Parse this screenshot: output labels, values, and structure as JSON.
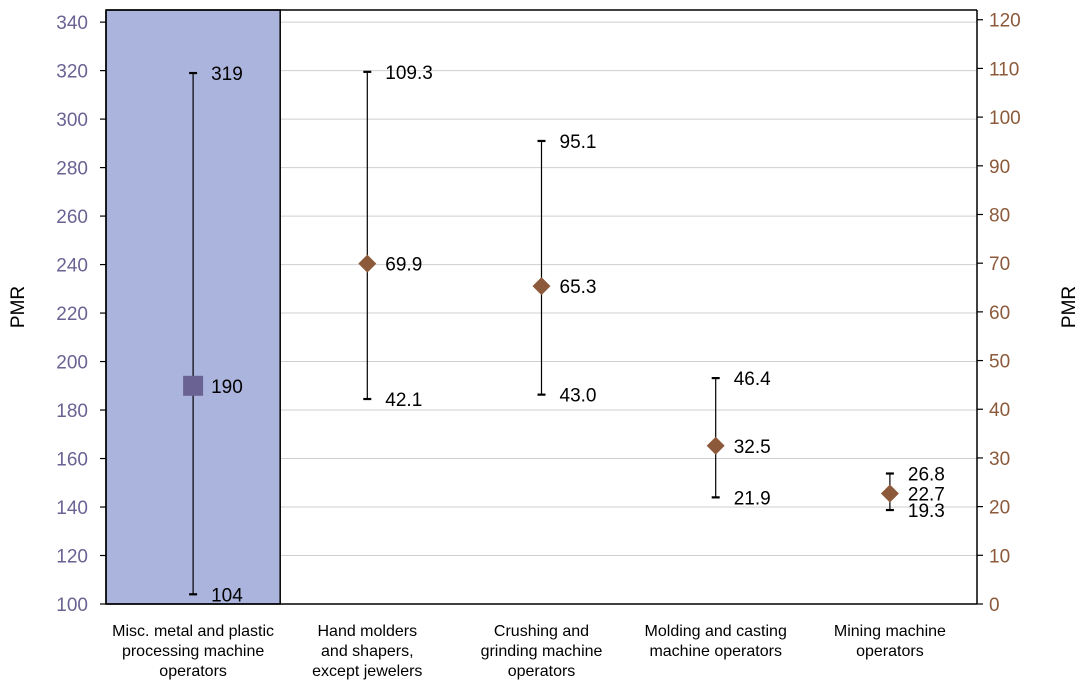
{
  "chart_data": {
    "type": "errorbar",
    "y_left": {
      "label": "PMR",
      "ticks": [
        100,
        120,
        140,
        160,
        180,
        200,
        220,
        240,
        260,
        280,
        300,
        320,
        340
      ],
      "ylim": [
        100,
        345
      ],
      "tick_color": "#6b6294"
    },
    "y_right": {
      "label": "PMR",
      "ticks": [
        0,
        10,
        20,
        30,
        40,
        50,
        60,
        70,
        80,
        90,
        100,
        110,
        120
      ],
      "ylim": [
        0,
        122
      ],
      "tick_color": "#8c5a3a"
    },
    "grid": true,
    "highlight_color": "#aab4dc",
    "categories": [
      {
        "lines": [
          "Misc. metal and plastic",
          "processing machine",
          "operators"
        ],
        "axis": "left",
        "marker": "square",
        "color": "#6b6294",
        "point": 190,
        "low": 104,
        "high": 319,
        "labels": {
          "point": "190",
          "low": "104",
          "high": "319"
        },
        "highlight": true
      },
      {
        "lines": [
          "Hand molders",
          "and shapers,",
          "except jewelers"
        ],
        "axis": "right",
        "marker": "diamond",
        "color": "#8c5a3a",
        "point": 69.9,
        "low": 42.1,
        "high": 109.3,
        "labels": {
          "point": "69.9",
          "low": "42.1",
          "high": "109.3"
        }
      },
      {
        "lines": [
          "Crushing and",
          "grinding machine",
          "operators"
        ],
        "axis": "right",
        "marker": "diamond",
        "color": "#8c5a3a",
        "point": 65.3,
        "low": 43.0,
        "high": 95.1,
        "labels": {
          "point": "65.3",
          "low": "43.0",
          "high": "95.1"
        }
      },
      {
        "lines": [
          "Molding and casting",
          "machine operators"
        ],
        "axis": "right",
        "marker": "diamond",
        "color": "#8c5a3a",
        "point": 32.5,
        "low": 21.9,
        "high": 46.4,
        "labels": {
          "point": "32.5",
          "low": "21.9",
          "high": "46.4"
        }
      },
      {
        "lines": [
          "Mining machine",
          "operators"
        ],
        "axis": "right",
        "marker": "diamond",
        "color": "#8c5a3a",
        "point": 22.7,
        "low": 19.3,
        "high": 26.8,
        "labels": {
          "point": "22.7",
          "low": "19.3",
          "high": "26.8"
        }
      }
    ]
  }
}
